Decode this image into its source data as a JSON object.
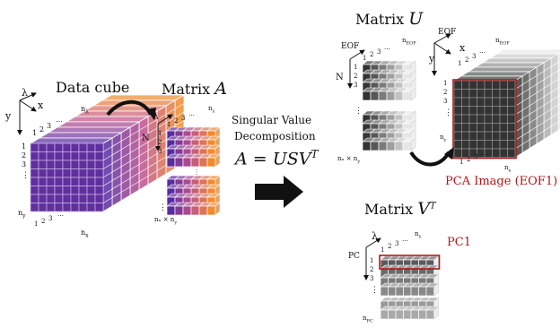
{
  "labels": {
    "data_cube": "Data cube",
    "matrix_a": "Matrix",
    "matrix_a_sym": "A",
    "matrix_u": "Matrix",
    "matrix_u_sym": "U",
    "matrix_vt": "Matrix",
    "matrix_vt_sym": "V",
    "matrix_vt_sup": "T",
    "svd_line1": "Singular Value",
    "svd_line2": "Decomposition",
    "equation": "A = USV",
    "equation_sup": "T",
    "pca_image": "PCA Image (EOF1)",
    "pc1": "PC1"
  },
  "axes": {
    "lambda": "λ",
    "x": "x",
    "y": "y",
    "N": "N",
    "EOF": "EOF",
    "PC": "PC"
  },
  "indices": {
    "one": "1",
    "two": "2",
    "three": "3",
    "dots": "⋯",
    "vdots": "⋮",
    "n_lambda": "n",
    "n_lambda_sub": "λ",
    "n_x": "n",
    "n_x_sub": "x",
    "n_y": "n",
    "n_y_sub": "y",
    "n_eof": "n",
    "n_eof_sub": "EOF",
    "n_pc": "n",
    "n_pc_sub": "PC",
    "nx_ny": "n",
    "times": "×"
  },
  "colors": {
    "cube_purple": "#5a2aa0",
    "cube_orange": "#f08a2c",
    "red_highlight": "#b01818",
    "arrow": "#000000"
  }
}
